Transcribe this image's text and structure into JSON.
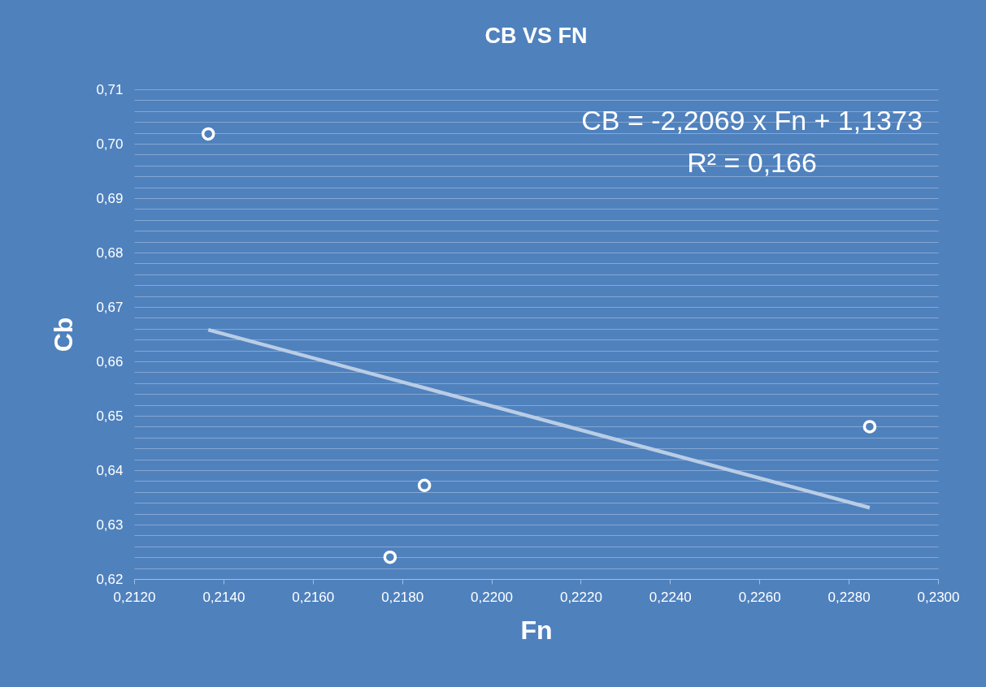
{
  "chart_data": {
    "type": "scatter",
    "title": "CB VS FN",
    "xlabel": "Fn",
    "ylabel": "Cb",
    "annotations": [
      "CB = -2,2069 x Fn + 1,1373",
      "R² = 0,166"
    ],
    "series": [
      {
        "type": "scatter",
        "marker": "circle",
        "color": "#ffffff",
        "x": [
          0.21366,
          0.21773,
          0.2185,
          0.22847
        ],
        "values": [
          0.7018,
          0.624,
          0.6372,
          0.648
        ]
      },
      {
        "type": "line",
        "marker": "none",
        "color": "#b9cde5",
        "x": [
          0.21366,
          0.22847
        ],
        "values": [
          0.6658,
          0.6331
        ]
      }
    ],
    "xlim": [
      0.212,
      0.23
    ],
    "xticks": [
      {
        "value": 0.212,
        "label": "0,2120"
      },
      {
        "value": 0.214,
        "label": "0,2140"
      },
      {
        "value": 0.216,
        "label": "0,2160"
      },
      {
        "value": 0.218,
        "label": "0,2180"
      },
      {
        "value": 0.22,
        "label": "0,2200"
      },
      {
        "value": 0.222,
        "label": "0,2220"
      },
      {
        "value": 0.224,
        "label": "0,2240"
      },
      {
        "value": 0.226,
        "label": "0,2260"
      },
      {
        "value": 0.228,
        "label": "0,2280"
      },
      {
        "value": 0.23,
        "label": "0,2300"
      }
    ],
    "ylim": [
      0.62,
      0.71
    ],
    "yticks": [
      {
        "value": 0.62,
        "label": "0,62"
      },
      {
        "value": 0.622,
        "label": null
      },
      {
        "value": 0.624,
        "label": null
      },
      {
        "value": 0.626,
        "label": null
      },
      {
        "value": 0.628,
        "label": null
      },
      {
        "value": 0.63,
        "label": "0,63"
      },
      {
        "value": 0.632,
        "label": null
      },
      {
        "value": 0.634,
        "label": null
      },
      {
        "value": 0.636,
        "label": null
      },
      {
        "value": 0.638,
        "label": null
      },
      {
        "value": 0.64,
        "label": "0,64"
      },
      {
        "value": 0.642,
        "label": null
      },
      {
        "value": 0.644,
        "label": null
      },
      {
        "value": 0.646,
        "label": null
      },
      {
        "value": 0.648,
        "label": null
      },
      {
        "value": 0.65,
        "label": "0,65"
      },
      {
        "value": 0.652,
        "label": null
      },
      {
        "value": 0.654,
        "label": null
      },
      {
        "value": 0.656,
        "label": null
      },
      {
        "value": 0.658,
        "label": null
      },
      {
        "value": 0.66,
        "label": "0,66"
      },
      {
        "value": 0.662,
        "label": null
      },
      {
        "value": 0.664,
        "label": null
      },
      {
        "value": 0.666,
        "label": null
      },
      {
        "value": 0.668,
        "label": null
      },
      {
        "value": 0.67,
        "label": "0,67"
      },
      {
        "value": 0.672,
        "label": null
      },
      {
        "value": 0.674,
        "label": null
      },
      {
        "value": 0.676,
        "label": null
      },
      {
        "value": 0.678,
        "label": null
      },
      {
        "value": 0.68,
        "label": "0,68"
      },
      {
        "value": 0.682,
        "label": null
      },
      {
        "value": 0.684,
        "label": null
      },
      {
        "value": 0.686,
        "label": null
      },
      {
        "value": 0.688,
        "label": null
      },
      {
        "value": 0.69,
        "label": "0,69"
      },
      {
        "value": 0.692,
        "label": null
      },
      {
        "value": 0.694,
        "label": null
      },
      {
        "value": 0.696,
        "label": null
      },
      {
        "value": 0.698,
        "label": null
      },
      {
        "value": 0.7,
        "label": "0,70"
      },
      {
        "value": 0.702,
        "label": null
      },
      {
        "value": 0.704,
        "label": null
      },
      {
        "value": 0.706,
        "label": null
      },
      {
        "value": 0.708,
        "label": null
      },
      {
        "value": 0.71,
        "label": "0,71"
      }
    ],
    "grid": "y"
  }
}
